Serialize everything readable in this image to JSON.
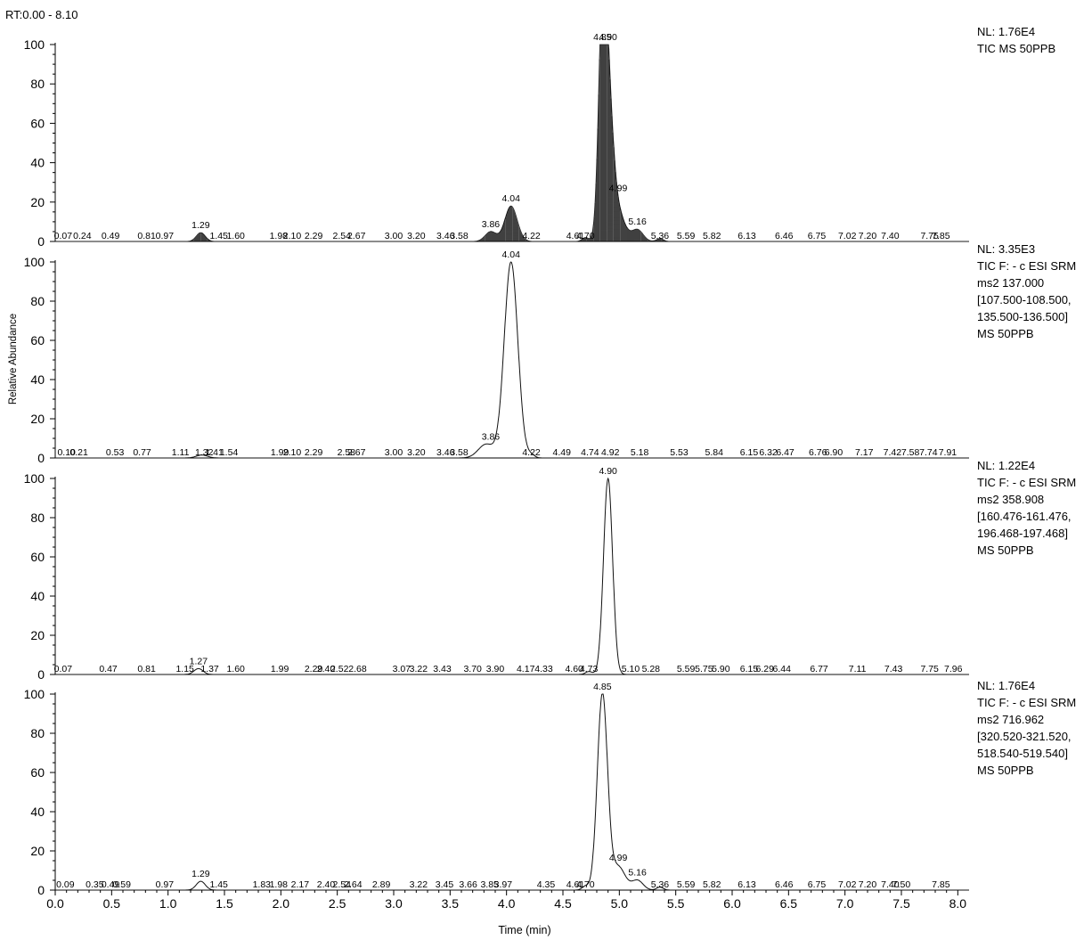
{
  "header": {
    "rt_range": "RT:0.00 - 8.10"
  },
  "chart_data": {
    "type": "line",
    "title": "RT:0.00 - 8.10",
    "xlabel": "Time (min)",
    "ylabel": "Relative Abundance",
    "xlim": [
      0,
      8.1
    ],
    "ylim": [
      0,
      100
    ],
    "x_ticks": [
      "0.0",
      "0.5",
      "1.0",
      "1.5",
      "2.0",
      "2.5",
      "3.0",
      "3.5",
      "4.0",
      "4.5",
      "5.0",
      "5.5",
      "6.0",
      "6.5",
      "7.0",
      "7.5",
      "8.0"
    ],
    "y_ticks": [
      "0",
      "20",
      "40",
      "60",
      "80",
      "100"
    ],
    "panels": [
      {
        "nl": "NL: 1.76E4",
        "info": [
          "TIC  MS 50PPB"
        ],
        "style": "filled",
        "peaks": [
          {
            "rt": 1.29,
            "height": 4.5,
            "width": 0.04
          },
          {
            "rt": 3.86,
            "height": 5,
            "width": 0.05
          },
          {
            "rt": 4.04,
            "height": 18,
            "width": 0.055
          },
          {
            "rt": 4.7,
            "height": 2,
            "width": 0.03
          },
          {
            "rt": 4.85,
            "height": 100,
            "width": 0.035
          },
          {
            "rt": 4.9,
            "height": 68,
            "width": 0.045
          },
          {
            "rt": 4.99,
            "height": 14,
            "width": 0.06
          },
          {
            "rt": 5.16,
            "height": 6,
            "width": 0.05
          },
          {
            "rt": 5.36,
            "height": 1.5,
            "width": 0.03
          }
        ],
        "labels": [
          {
            "rt": 0.07,
            "text": "0.07"
          },
          {
            "rt": 0.24,
            "text": "0.24"
          },
          {
            "rt": 0.49,
            "text": "0.49"
          },
          {
            "rt": 0.81,
            "text": "0.81"
          },
          {
            "rt": 0.97,
            "text": "0.97"
          },
          {
            "rt": 1.29,
            "text": "1.29"
          },
          {
            "rt": 1.45,
            "text": "1.45"
          },
          {
            "rt": 1.6,
            "text": "1.60"
          },
          {
            "rt": 1.98,
            "text": "1.98"
          },
          {
            "rt": 2.1,
            "text": "2.10"
          },
          {
            "rt": 2.29,
            "text": "2.29"
          },
          {
            "rt": 2.54,
            "text": "2.54"
          },
          {
            "rt": 2.67,
            "text": "2.67"
          },
          {
            "rt": 3.0,
            "text": "3.00"
          },
          {
            "rt": 3.2,
            "text": "3.20"
          },
          {
            "rt": 3.46,
            "text": "3.46"
          },
          {
            "rt": 3.58,
            "text": "3.58"
          },
          {
            "rt": 3.86,
            "text": "3.86"
          },
          {
            "rt": 4.04,
            "text": "4.04"
          },
          {
            "rt": 4.22,
            "text": "4.22"
          },
          {
            "rt": 4.61,
            "text": "4.61"
          },
          {
            "rt": 4.7,
            "text": "4.70"
          },
          {
            "rt": 4.85,
            "text": "4.85"
          },
          {
            "rt": 4.9,
            "text": "4.90"
          },
          {
            "rt": 4.99,
            "text": "4.99"
          },
          {
            "rt": 5.16,
            "text": "5.16"
          },
          {
            "rt": 5.36,
            "text": "5.36"
          },
          {
            "rt": 5.59,
            "text": "5.59"
          },
          {
            "rt": 5.82,
            "text": "5.82"
          },
          {
            "rt": 6.13,
            "text": "6.13"
          },
          {
            "rt": 6.46,
            "text": "6.46"
          },
          {
            "rt": 6.75,
            "text": "6.75"
          },
          {
            "rt": 7.02,
            "text": "7.02"
          },
          {
            "rt": 7.2,
            "text": "7.20"
          },
          {
            "rt": 7.4,
            "text": "7.40"
          },
          {
            "rt": 7.75,
            "text": "7.75"
          },
          {
            "rt": 7.85,
            "text": "7.85"
          }
        ]
      },
      {
        "nl": "NL: 3.35E3",
        "info": [
          "TIC F: - c ESI SRM",
          "ms2 137.000",
          "[107.500-108.500,",
          "135.500-136.500]",
          "MS 50PPB"
        ],
        "style": "line",
        "peaks": [
          {
            "rt": 1.3,
            "height": 1.5,
            "width": 0.05
          },
          {
            "rt": 3.82,
            "height": 7,
            "width": 0.07
          },
          {
            "rt": 4.04,
            "height": 100,
            "width": 0.06
          },
          {
            "rt": 4.22,
            "height": 1.5,
            "width": 0.03
          }
        ],
        "labels": [
          {
            "rt": 0.1,
            "text": "0.10"
          },
          {
            "rt": 0.21,
            "text": "0.21"
          },
          {
            "rt": 0.53,
            "text": "0.53"
          },
          {
            "rt": 0.77,
            "text": "0.77"
          },
          {
            "rt": 1.11,
            "text": "1.11"
          },
          {
            "rt": 1.32,
            "text": "1.32"
          },
          {
            "rt": 1.41,
            "text": "1.41"
          },
          {
            "rt": 1.54,
            "text": "1.54"
          },
          {
            "rt": 1.99,
            "text": "1.99"
          },
          {
            "rt": 2.1,
            "text": "2.10"
          },
          {
            "rt": 2.29,
            "text": "2.29"
          },
          {
            "rt": 2.58,
            "text": "2.58"
          },
          {
            "rt": 2.67,
            "text": "2.67"
          },
          {
            "rt": 3.0,
            "text": "3.00"
          },
          {
            "rt": 3.2,
            "text": "3.20"
          },
          {
            "rt": 3.46,
            "text": "3.46"
          },
          {
            "rt": 3.58,
            "text": "3.58"
          },
          {
            "rt": 3.86,
            "text": "3.86"
          },
          {
            "rt": 4.04,
            "text": "4.04"
          },
          {
            "rt": 4.22,
            "text": "4.22"
          },
          {
            "rt": 4.49,
            "text": "4.49"
          },
          {
            "rt": 4.74,
            "text": "4.74"
          },
          {
            "rt": 4.92,
            "text": "4.92"
          },
          {
            "rt": 5.18,
            "text": "5.18"
          },
          {
            "rt": 5.53,
            "text": "5.53"
          },
          {
            "rt": 5.84,
            "text": "5.84"
          },
          {
            "rt": 6.15,
            "text": "6.15"
          },
          {
            "rt": 6.32,
            "text": "6.32"
          },
          {
            "rt": 6.47,
            "text": "6.47"
          },
          {
            "rt": 6.76,
            "text": "6.76"
          },
          {
            "rt": 6.9,
            "text": "6.90"
          },
          {
            "rt": 7.17,
            "text": "7.17"
          },
          {
            "rt": 7.42,
            "text": "7.42"
          },
          {
            "rt": 7.58,
            "text": "7.58"
          },
          {
            "rt": 7.74,
            "text": "7.74"
          },
          {
            "rt": 7.91,
            "text": "7.91"
          }
        ]
      },
      {
        "nl": "NL: 1.22E4",
        "info": [
          "TIC F: - c ESI SRM",
          "ms2 358.908",
          "[160.476-161.476,",
          "196.468-197.468]",
          "MS 50PPB"
        ],
        "style": "line",
        "peaks": [
          {
            "rt": 1.27,
            "height": 3,
            "width": 0.04
          },
          {
            "rt": 4.73,
            "height": 1.5,
            "width": 0.03
          },
          {
            "rt": 4.9,
            "height": 100,
            "width": 0.04
          }
        ],
        "labels": [
          {
            "rt": 0.07,
            "text": "0.07"
          },
          {
            "rt": 0.47,
            "text": "0.47"
          },
          {
            "rt": 0.81,
            "text": "0.81"
          },
          {
            "rt": 1.15,
            "text": "1.15"
          },
          {
            "rt": 1.27,
            "text": "1.27"
          },
          {
            "rt": 1.37,
            "text": "1.37"
          },
          {
            "rt": 1.6,
            "text": "1.60"
          },
          {
            "rt": 1.99,
            "text": "1.99"
          },
          {
            "rt": 2.29,
            "text": "2.29"
          },
          {
            "rt": 2.4,
            "text": "2.40"
          },
          {
            "rt": 2.52,
            "text": "2.52"
          },
          {
            "rt": 2.68,
            "text": "2.68"
          },
          {
            "rt": 3.07,
            "text": "3.07"
          },
          {
            "rt": 3.22,
            "text": "3.22"
          },
          {
            "rt": 3.43,
            "text": "3.43"
          },
          {
            "rt": 3.7,
            "text": "3.70"
          },
          {
            "rt": 3.9,
            "text": "3.90"
          },
          {
            "rt": 4.17,
            "text": "4.17"
          },
          {
            "rt": 4.33,
            "text": "4.33"
          },
          {
            "rt": 4.6,
            "text": "4.60"
          },
          {
            "rt": 4.73,
            "text": "4.73"
          },
          {
            "rt": 4.9,
            "text": "4.90"
          },
          {
            "rt": 5.1,
            "text": "5.10"
          },
          {
            "rt": 5.28,
            "text": "5.28"
          },
          {
            "rt": 5.59,
            "text": "5.59"
          },
          {
            "rt": 5.75,
            "text": "5.75"
          },
          {
            "rt": 5.9,
            "text": "5.90"
          },
          {
            "rt": 6.15,
            "text": "6.15"
          },
          {
            "rt": 6.29,
            "text": "6.29"
          },
          {
            "rt": 6.44,
            "text": "6.44"
          },
          {
            "rt": 6.77,
            "text": "6.77"
          },
          {
            "rt": 7.11,
            "text": "7.11"
          },
          {
            "rt": 7.43,
            "text": "7.43"
          },
          {
            "rt": 7.75,
            "text": "7.75"
          },
          {
            "rt": 7.96,
            "text": "7.96"
          }
        ]
      },
      {
        "nl": "NL: 1.76E4",
        "info": [
          "TIC F: - c ESI SRM",
          "ms2 716.962",
          "[320.520-321.520,",
          "518.540-519.540]",
          "MS 50PPB"
        ],
        "style": "line",
        "peaks": [
          {
            "rt": 1.29,
            "height": 4.5,
            "width": 0.04
          },
          {
            "rt": 4.7,
            "height": 2,
            "width": 0.03
          },
          {
            "rt": 4.85,
            "height": 100,
            "width": 0.045
          },
          {
            "rt": 4.99,
            "height": 12,
            "width": 0.06
          },
          {
            "rt": 5.16,
            "height": 5,
            "width": 0.05
          },
          {
            "rt": 5.36,
            "height": 1.5,
            "width": 0.03
          }
        ],
        "labels": [
          {
            "rt": 0.09,
            "text": "0.09"
          },
          {
            "rt": 0.35,
            "text": "0.35"
          },
          {
            "rt": 0.49,
            "text": "0.49"
          },
          {
            "rt": 0.59,
            "text": "0.59"
          },
          {
            "rt": 0.97,
            "text": "0.97"
          },
          {
            "rt": 1.29,
            "text": "1.29"
          },
          {
            "rt": 1.45,
            "text": "1.45"
          },
          {
            "rt": 1.83,
            "text": "1.83"
          },
          {
            "rt": 1.98,
            "text": "1.98"
          },
          {
            "rt": 2.17,
            "text": "2.17"
          },
          {
            "rt": 2.4,
            "text": "2.40"
          },
          {
            "rt": 2.54,
            "text": "2.54"
          },
          {
            "rt": 2.64,
            "text": "2.64"
          },
          {
            "rt": 2.89,
            "text": "2.89"
          },
          {
            "rt": 3.22,
            "text": "3.22"
          },
          {
            "rt": 3.45,
            "text": "3.45"
          },
          {
            "rt": 3.66,
            "text": "3.66"
          },
          {
            "rt": 3.85,
            "text": "3.85"
          },
          {
            "rt": 3.97,
            "text": "3.97"
          },
          {
            "rt": 4.35,
            "text": "4.35"
          },
          {
            "rt": 4.61,
            "text": "4.61"
          },
          {
            "rt": 4.7,
            "text": "4.70"
          },
          {
            "rt": 4.85,
            "text": "4.85"
          },
          {
            "rt": 4.99,
            "text": "4.99"
          },
          {
            "rt": 5.16,
            "text": "5.16"
          },
          {
            "rt": 5.36,
            "text": "5.36"
          },
          {
            "rt": 5.59,
            "text": "5.59"
          },
          {
            "rt": 5.82,
            "text": "5.82"
          },
          {
            "rt": 6.13,
            "text": "6.13"
          },
          {
            "rt": 6.46,
            "text": "6.46"
          },
          {
            "rt": 6.75,
            "text": "6.75"
          },
          {
            "rt": 7.02,
            "text": "7.02"
          },
          {
            "rt": 7.2,
            "text": "7.20"
          },
          {
            "rt": 7.4,
            "text": "7.40"
          },
          {
            "rt": 7.5,
            "text": "7.50"
          },
          {
            "rt": 7.85,
            "text": "7.85"
          }
        ]
      }
    ]
  }
}
